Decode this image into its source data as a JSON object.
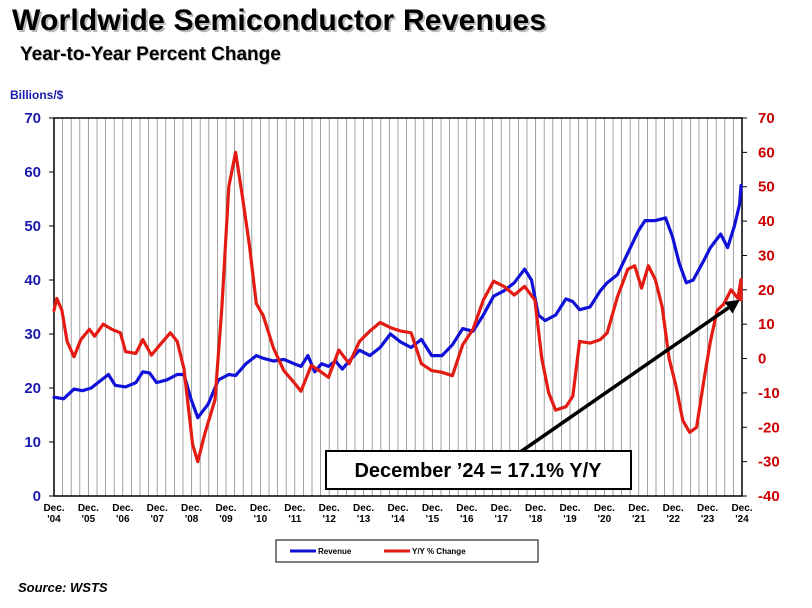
{
  "header": {
    "title": "Worldwide Semiconductor Revenues",
    "subtitle": "Year-to-Year Percent Change",
    "left_axis_unit": "Billions/$",
    "source": "Source: WSTS"
  },
  "chart_data": {
    "type": "line",
    "title": "Worldwide Semiconductor Revenues",
    "subtitle": "Year-to-Year Percent Change",
    "ylabel": "Billions/$",
    "ylim": [
      0,
      70
    ],
    "y2lim": [
      -40,
      70
    ],
    "yticks": [
      0,
      10,
      20,
      30,
      40,
      50,
      60,
      70
    ],
    "y2ticks": [
      -40,
      -30,
      -20,
      -10,
      0,
      10,
      20,
      30,
      40,
      50,
      60,
      70
    ],
    "xlim": [
      2004.92,
      2024.92
    ],
    "x_ticks": [
      {
        "x": 2004.92,
        "line1": "Dec.",
        "line2": "'04"
      },
      {
        "x": 2005.92,
        "line1": "Dec.",
        "line2": "'05"
      },
      {
        "x": 2006.92,
        "line1": "Dec.",
        "line2": "'06"
      },
      {
        "x": 2007.92,
        "line1": "Dec.",
        "line2": "'07"
      },
      {
        "x": 2008.92,
        "line1": "Dec.",
        "line2": "'08"
      },
      {
        "x": 2009.92,
        "line1": "Dec.",
        "line2": "'09"
      },
      {
        "x": 2010.92,
        "line1": "Dec.",
        "line2": "'10"
      },
      {
        "x": 2011.92,
        "line1": "Dec.",
        "line2": "'11"
      },
      {
        "x": 2012.92,
        "line1": "Dec.",
        "line2": "'12"
      },
      {
        "x": 2013.92,
        "line1": "Dec.",
        "line2": "'13"
      },
      {
        "x": 2014.92,
        "line1": "Dec.",
        "line2": "'14"
      },
      {
        "x": 2015.92,
        "line1": "Dec.",
        "line2": "'15"
      },
      {
        "x": 2016.92,
        "line1": "Dec.",
        "line2": "'16"
      },
      {
        "x": 2017.92,
        "line1": "Dec.",
        "line2": "'17"
      },
      {
        "x": 2018.92,
        "line1": "Dec.",
        "line2": "'18"
      },
      {
        "x": 2019.92,
        "line1": "Dec.",
        "line2": "'19"
      },
      {
        "x": 2020.92,
        "line1": "Dec.",
        "line2": "'20"
      },
      {
        "x": 2021.92,
        "line1": "Dec.",
        "line2": "'21"
      },
      {
        "x": 2022.92,
        "line1": "Dec.",
        "line2": "'22"
      },
      {
        "x": 2023.92,
        "line1": "Dec.",
        "line2": "'23"
      },
      {
        "x": 2024.92,
        "line1": "Dec.",
        "line2": "'24"
      }
    ],
    "grid": true,
    "legend_position": "bottom-center",
    "series": [
      {
        "name": "Revenue",
        "axis": "left",
        "color": "#1010d8",
        "points": [
          [
            2004.92,
            18.3
          ],
          [
            2005.2,
            18.0
          ],
          [
            2005.5,
            19.8
          ],
          [
            2005.75,
            19.5
          ],
          [
            2006.0,
            20.0
          ],
          [
            2006.3,
            21.5
          ],
          [
            2006.5,
            22.5
          ],
          [
            2006.7,
            20.5
          ],
          [
            2007.0,
            20.2
          ],
          [
            2007.3,
            21.0
          ],
          [
            2007.5,
            23.0
          ],
          [
            2007.7,
            22.8
          ],
          [
            2007.9,
            21.0
          ],
          [
            2008.2,
            21.5
          ],
          [
            2008.5,
            22.5
          ],
          [
            2008.7,
            22.5
          ],
          [
            2008.9,
            18.0
          ],
          [
            2009.1,
            14.5
          ],
          [
            2009.4,
            17.0
          ],
          [
            2009.7,
            21.5
          ],
          [
            2010.0,
            22.5
          ],
          [
            2010.2,
            22.3
          ],
          [
            2010.5,
            24.5
          ],
          [
            2010.8,
            26.0
          ],
          [
            2011.0,
            25.5
          ],
          [
            2011.3,
            25.0
          ],
          [
            2011.6,
            25.3
          ],
          [
            2011.9,
            24.5
          ],
          [
            2012.1,
            24.0
          ],
          [
            2012.3,
            26.0
          ],
          [
            2012.5,
            23.0
          ],
          [
            2012.7,
            24.5
          ],
          [
            2012.9,
            24.0
          ],
          [
            2013.1,
            25.0
          ],
          [
            2013.3,
            23.5
          ],
          [
            2013.5,
            25.0
          ],
          [
            2013.8,
            27.0
          ],
          [
            2014.1,
            26.0
          ],
          [
            2014.4,
            27.5
          ],
          [
            2014.7,
            30.0
          ],
          [
            2015.0,
            28.5
          ],
          [
            2015.3,
            27.5
          ],
          [
            2015.6,
            29.0
          ],
          [
            2015.9,
            26.0
          ],
          [
            2016.2,
            26.0
          ],
          [
            2016.5,
            28.0
          ],
          [
            2016.8,
            31.0
          ],
          [
            2017.1,
            30.5
          ],
          [
            2017.4,
            33.5
          ],
          [
            2017.7,
            37.0
          ],
          [
            2018.0,
            38.0
          ],
          [
            2018.3,
            39.5
          ],
          [
            2018.6,
            42.0
          ],
          [
            2018.8,
            40.0
          ],
          [
            2019.0,
            33.5
          ],
          [
            2019.2,
            32.5
          ],
          [
            2019.5,
            33.5
          ],
          [
            2019.8,
            36.5
          ],
          [
            2020.0,
            36.0
          ],
          [
            2020.2,
            34.5
          ],
          [
            2020.5,
            35.0
          ],
          [
            2020.8,
            38.0
          ],
          [
            2021.0,
            39.5
          ],
          [
            2021.3,
            41.0
          ],
          [
            2021.6,
            45.0
          ],
          [
            2021.9,
            49.0
          ],
          [
            2022.1,
            51.0
          ],
          [
            2022.4,
            51.0
          ],
          [
            2022.7,
            51.5
          ],
          [
            2022.9,
            48.0
          ],
          [
            2023.1,
            43.0
          ],
          [
            2023.3,
            39.5
          ],
          [
            2023.5,
            40.0
          ],
          [
            2023.8,
            43.5
          ],
          [
            2024.0,
            46.0
          ],
          [
            2024.3,
            48.5
          ],
          [
            2024.5,
            46.0
          ],
          [
            2024.7,
            50.0
          ],
          [
            2024.85,
            54.0
          ],
          [
            2025.0,
            57.5
          ],
          [
            2025.15,
            57.3
          ]
        ]
      },
      {
        "name": "Y/Y % Change",
        "axis": "right",
        "color": "#e31b12",
        "points": [
          [
            2004.92,
            14.0
          ],
          [
            2005.0,
            17.5
          ],
          [
            2005.15,
            14.0
          ],
          [
            2005.3,
            5.0
          ],
          [
            2005.5,
            0.5
          ],
          [
            2005.7,
            5.5
          ],
          [
            2005.95,
            8.5
          ],
          [
            2006.1,
            6.5
          ],
          [
            2006.35,
            10.0
          ],
          [
            2006.6,
            8.5
          ],
          [
            2006.85,
            7.5
          ],
          [
            2007.0,
            2.0
          ],
          [
            2007.3,
            1.5
          ],
          [
            2007.5,
            5.5
          ],
          [
            2007.75,
            1.0
          ],
          [
            2008.0,
            4.0
          ],
          [
            2008.3,
            7.5
          ],
          [
            2008.5,
            5.0
          ],
          [
            2008.7,
            -3.0
          ],
          [
            2008.95,
            -25.0
          ],
          [
            2009.1,
            -30.0
          ],
          [
            2009.3,
            -22.0
          ],
          [
            2009.6,
            -12.0
          ],
          [
            2009.8,
            15.0
          ],
          [
            2010.0,
            50.0
          ],
          [
            2010.2,
            60.0
          ],
          [
            2010.4,
            47.0
          ],
          [
            2010.6,
            33.0
          ],
          [
            2010.8,
            16.0
          ],
          [
            2011.0,
            12.5
          ],
          [
            2011.3,
            3.0
          ],
          [
            2011.6,
            -3.5
          ],
          [
            2011.9,
            -7.0
          ],
          [
            2012.1,
            -9.5
          ],
          [
            2012.4,
            -2.0
          ],
          [
            2012.7,
            -4.0
          ],
          [
            2012.9,
            -5.5
          ],
          [
            2013.2,
            2.5
          ],
          [
            2013.5,
            -1.5
          ],
          [
            2013.8,
            5.0
          ],
          [
            2014.1,
            8.0
          ],
          [
            2014.4,
            10.5
          ],
          [
            2014.7,
            9.0
          ],
          [
            2015.0,
            8.0
          ],
          [
            2015.3,
            7.5
          ],
          [
            2015.6,
            -1.5
          ],
          [
            2015.9,
            -3.5
          ],
          [
            2016.2,
            -4.0
          ],
          [
            2016.5,
            -5.0
          ],
          [
            2016.8,
            4.0
          ],
          [
            2017.1,
            8.5
          ],
          [
            2017.4,
            17.0
          ],
          [
            2017.7,
            22.5
          ],
          [
            2018.0,
            21.0
          ],
          [
            2018.3,
            18.5
          ],
          [
            2018.6,
            21.0
          ],
          [
            2018.9,
            17.0
          ],
          [
            2019.1,
            0.0
          ],
          [
            2019.3,
            -10.0
          ],
          [
            2019.5,
            -15.0
          ],
          [
            2019.8,
            -14.0
          ],
          [
            2020.0,
            -11.0
          ],
          [
            2020.2,
            5.0
          ],
          [
            2020.5,
            4.5
          ],
          [
            2020.8,
            5.5
          ],
          [
            2021.0,
            7.5
          ],
          [
            2021.3,
            18.0
          ],
          [
            2021.6,
            26.0
          ],
          [
            2021.8,
            27.0
          ],
          [
            2022.0,
            20.5
          ],
          [
            2022.2,
            27.0
          ],
          [
            2022.4,
            23.0
          ],
          [
            2022.6,
            15.0
          ],
          [
            2022.8,
            0.0
          ],
          [
            2023.0,
            -8.0
          ],
          [
            2023.2,
            -18.0
          ],
          [
            2023.4,
            -21.5
          ],
          [
            2023.6,
            -20.0
          ],
          [
            2023.8,
            -7.0
          ],
          [
            2024.0,
            5.0
          ],
          [
            2024.2,
            14.0
          ],
          [
            2024.4,
            16.0
          ],
          [
            2024.6,
            20.0
          ],
          [
            2024.8,
            17.5
          ],
          [
            2025.0,
            23.0
          ],
          [
            2025.1,
            20.5
          ],
          [
            2025.2,
            17.1
          ]
        ]
      }
    ],
    "annotation": {
      "text": "December ’24 = 17.1% Y/Y",
      "target": {
        "x": 2025.15,
        "y_right": 17.1
      }
    }
  }
}
